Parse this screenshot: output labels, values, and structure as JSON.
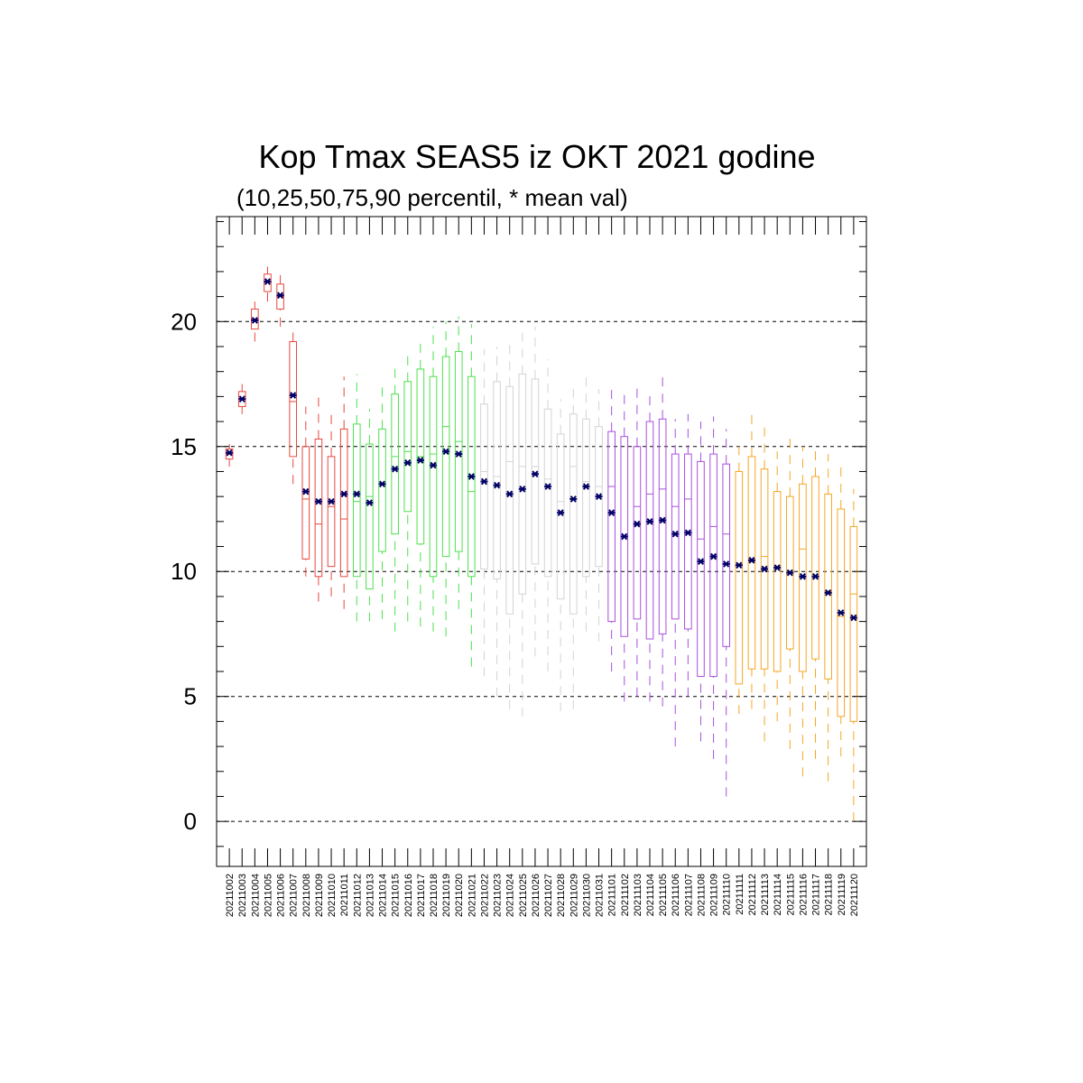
{
  "chart_data": {
    "type": "box",
    "title": "Kop Tmax SEAS5 iz OKT 2021 godine",
    "subtitle": "(10,25,50,75,90 percentil, * mean val)",
    "xlabel": "",
    "ylabel": "",
    "ylim": [
      -1.8,
      24.2
    ],
    "yticks": [
      0,
      5,
      10,
      15,
      20
    ],
    "ytick_labels": [
      "0",
      "5",
      "10",
      "15",
      "20"
    ],
    "grid": "horizontal-dashed",
    "series_colors": {
      "red": "#e8483e",
      "green": "#4ee04e",
      "gray": "#d3d3d3",
      "purple": "#a94fe0",
      "orange": "#f5a623"
    },
    "mean_marker_color": "#000066",
    "boxes": [
      {
        "date": "20211002",
        "p10": 14.2,
        "p25": 14.5,
        "p50": 14.7,
        "p75": 14.9,
        "p90": 15.1,
        "mean": 14.75,
        "color": "red"
      },
      {
        "date": "20211003",
        "p10": 16.3,
        "p25": 16.6,
        "p50": 16.9,
        "p75": 17.2,
        "p90": 17.5,
        "mean": 16.9,
        "color": "red"
      },
      {
        "date": "20211004",
        "p10": 19.2,
        "p25": 19.7,
        "p50": 20.1,
        "p75": 20.5,
        "p90": 20.8,
        "mean": 20.05,
        "color": "red"
      },
      {
        "date": "20211005",
        "p10": 20.8,
        "p25": 21.2,
        "p50": 21.6,
        "p75": 21.9,
        "p90": 22.2,
        "mean": 21.6,
        "color": "red"
      },
      {
        "date": "20211006",
        "p10": 19.8,
        "p25": 20.5,
        "p50": 21.0,
        "p75": 21.5,
        "p90": 21.9,
        "mean": 21.05,
        "color": "red"
      },
      {
        "date": "20211007",
        "p10": 13.5,
        "p25": 14.6,
        "p50": 16.8,
        "p75": 19.2,
        "p90": 19.8,
        "mean": 17.05,
        "color": "red"
      },
      {
        "date": "20211008",
        "p10": 9.8,
        "p25": 10.5,
        "p50": 12.9,
        "p75": 15.0,
        "p90": 16.6,
        "mean": 13.2,
        "color": "red"
      },
      {
        "date": "20211009",
        "p10": 8.8,
        "p25": 9.8,
        "p50": 11.9,
        "p75": 15.3,
        "p90": 17.2,
        "mean": 12.8,
        "color": "red"
      },
      {
        "date": "20211010",
        "p10": 9.0,
        "p25": 10.2,
        "p50": 12.6,
        "p75": 14.6,
        "p90": 16.3,
        "mean": 12.8,
        "color": "red"
      },
      {
        "date": "20211011",
        "p10": 8.5,
        "p25": 9.8,
        "p50": 12.1,
        "p75": 15.7,
        "p90": 17.8,
        "mean": 13.1,
        "color": "red"
      },
      {
        "date": "20211012",
        "p10": 8.0,
        "p25": 9.8,
        "p50": 12.8,
        "p75": 15.9,
        "p90": 17.9,
        "mean": 13.1,
        "color": "green"
      },
      {
        "date": "20211013",
        "p10": 8.0,
        "p25": 9.3,
        "p50": 13.0,
        "p75": 15.1,
        "p90": 16.5,
        "mean": 12.75,
        "color": "green"
      },
      {
        "date": "20211014",
        "p10": 8.1,
        "p25": 10.8,
        "p50": 13.5,
        "p75": 15.7,
        "p90": 17.5,
        "mean": 13.5,
        "color": "green"
      },
      {
        "date": "20211015",
        "p10": 7.6,
        "p25": 11.5,
        "p50": 14.6,
        "p75": 17.1,
        "p90": 18.4,
        "mean": 14.1,
        "color": "green"
      },
      {
        "date": "20211016",
        "p10": 8.0,
        "p25": 12.4,
        "p50": 14.8,
        "p75": 17.6,
        "p90": 18.8,
        "mean": 14.35,
        "color": "green"
      },
      {
        "date": "20211017",
        "p10": 7.8,
        "p25": 11.1,
        "p50": 14.6,
        "p75": 18.1,
        "p90": 19.3,
        "mean": 14.45,
        "color": "green"
      },
      {
        "date": "20211018",
        "p10": 7.6,
        "p25": 9.8,
        "p50": 14.7,
        "p75": 17.8,
        "p90": 19.8,
        "mean": 14.25,
        "color": "green"
      },
      {
        "date": "20211019",
        "p10": 7.4,
        "p25": 10.6,
        "p50": 15.8,
        "p75": 18.6,
        "p90": 20.0,
        "mean": 14.8,
        "color": "green"
      },
      {
        "date": "20211020",
        "p10": 8.5,
        "p25": 10.8,
        "p50": 15.2,
        "p75": 18.8,
        "p90": 20.2,
        "mean": 14.7,
        "color": "green"
      },
      {
        "date": "20211021",
        "p10": 6.2,
        "p25": 9.8,
        "p50": 13.2,
        "p75": 17.8,
        "p90": 19.9,
        "mean": 13.8,
        "color": "green"
      },
      {
        "date": "20211022",
        "p10": 5.8,
        "p25": 10.1,
        "p50": 14.0,
        "p75": 16.7,
        "p90": 18.9,
        "mean": 13.6,
        "color": "gray"
      },
      {
        "date": "20211023",
        "p10": 5.0,
        "p25": 9.7,
        "p50": 13.8,
        "p75": 17.6,
        "p90": 19.0,
        "mean": 13.45,
        "color": "gray"
      },
      {
        "date": "20211024",
        "p10": 4.5,
        "p25": 8.3,
        "p50": 14.4,
        "p75": 17.4,
        "p90": 19.2,
        "mean": 13.1,
        "color": "gray"
      },
      {
        "date": "20211025",
        "p10": 4.2,
        "p25": 9.1,
        "p50": 14.2,
        "p75": 17.9,
        "p90": 19.6,
        "mean": 13.3,
        "color": "gray"
      },
      {
        "date": "20211026",
        "p10": 6.6,
        "p25": 10.3,
        "p50": 14.2,
        "p75": 17.7,
        "p90": 19.8,
        "mean": 13.9,
        "color": "gray"
      },
      {
        "date": "20211027",
        "p10": 6.0,
        "p25": 9.8,
        "p50": 13.7,
        "p75": 16.5,
        "p90": 18.5,
        "mean": 13.4,
        "color": "gray"
      },
      {
        "date": "20211028",
        "p10": 4.4,
        "p25": 8.9,
        "p50": 12.8,
        "p75": 15.5,
        "p90": 16.9,
        "mean": 12.35,
        "color": "gray"
      },
      {
        "date": "20211029",
        "p10": 4.5,
        "p25": 8.3,
        "p50": 14.2,
        "p75": 16.3,
        "p90": 17.5,
        "mean": 12.9,
        "color": "gray"
      },
      {
        "date": "20211030",
        "p10": 7.6,
        "p25": 9.8,
        "p50": 13.6,
        "p75": 16.1,
        "p90": 17.9,
        "mean": 13.4,
        "color": "gray"
      },
      {
        "date": "20211031",
        "p10": 7.2,
        "p25": 10.2,
        "p50": 13.4,
        "p75": 15.8,
        "p90": 17.3,
        "mean": 13.0,
        "color": "gray"
      },
      {
        "date": "20211101",
        "p10": 6.0,
        "p25": 8.0,
        "p50": 13.4,
        "p75": 15.6,
        "p90": 17.4,
        "mean": 12.35,
        "color": "purple"
      },
      {
        "date": "20211102",
        "p10": 4.8,
        "p25": 7.4,
        "p50": 11.4,
        "p75": 15.4,
        "p90": 17.1,
        "mean": 11.4,
        "color": "purple"
      },
      {
        "date": "20211103",
        "p10": 5.0,
        "p25": 8.1,
        "p50": 12.6,
        "p75": 15.0,
        "p90": 17.6,
        "mean": 11.9,
        "color": "purple"
      },
      {
        "date": "20211104",
        "p10": 4.8,
        "p25": 7.3,
        "p50": 13.1,
        "p75": 16.0,
        "p90": 17.2,
        "mean": 12.0,
        "color": "purple"
      },
      {
        "date": "20211105",
        "p10": 4.6,
        "p25": 7.5,
        "p50": 13.3,
        "p75": 16.1,
        "p90": 18.0,
        "mean": 12.05,
        "color": "purple"
      },
      {
        "date": "20211106",
        "p10": 3.0,
        "p25": 8.1,
        "p50": 12.6,
        "p75": 14.7,
        "p90": 16.1,
        "mean": 11.5,
        "color": "purple"
      },
      {
        "date": "20211107",
        "p10": 5.0,
        "p25": 7.7,
        "p50": 12.9,
        "p75": 14.7,
        "p90": 16.3,
        "mean": 11.55,
        "color": "purple"
      },
      {
        "date": "20211108",
        "p10": 3.2,
        "p25": 5.8,
        "p50": 11.3,
        "p75": 14.4,
        "p90": 16.0,
        "mean": 10.4,
        "color": "purple"
      },
      {
        "date": "20211109",
        "p10": 2.5,
        "p25": 5.8,
        "p50": 11.8,
        "p75": 14.7,
        "p90": 16.2,
        "mean": 10.6,
        "color": "purple"
      },
      {
        "date": "20211110",
        "p10": 1.0,
        "p25": 7.0,
        "p50": 11.5,
        "p75": 14.3,
        "p90": 15.7,
        "mean": 10.3,
        "color": "purple"
      },
      {
        "date": "20211111",
        "p10": 4.3,
        "p25": 5.5,
        "p50": 10.3,
        "p75": 14.0,
        "p90": 15.2,
        "mean": 10.25,
        "color": "orange"
      },
      {
        "date": "20211112",
        "p10": 4.5,
        "p25": 6.1,
        "p50": 10.4,
        "p75": 14.6,
        "p90": 16.4,
        "mean": 10.45,
        "color": "orange"
      },
      {
        "date": "20211113",
        "p10": 3.2,
        "p25": 6.1,
        "p50": 10.6,
        "p75": 14.1,
        "p90": 16.0,
        "mean": 10.1,
        "color": "orange"
      },
      {
        "date": "20211114",
        "p10": 4.0,
        "p25": 6.0,
        "p50": 10.2,
        "p75": 13.2,
        "p90": 14.8,
        "mean": 10.15,
        "color": "orange"
      },
      {
        "date": "20211115",
        "p10": 2.9,
        "p25": 6.9,
        "p50": 10.0,
        "p75": 13.0,
        "p90": 15.4,
        "mean": 9.95,
        "color": "orange"
      },
      {
        "date": "20211116",
        "p10": 1.8,
        "p25": 6.0,
        "p50": 10.9,
        "p75": 13.5,
        "p90": 15.0,
        "mean": 9.8,
        "color": "orange"
      },
      {
        "date": "20211117",
        "p10": 2.5,
        "p25": 6.5,
        "p50": 9.8,
        "p75": 13.8,
        "p90": 15.0,
        "mean": 9.8,
        "color": "orange"
      },
      {
        "date": "20211118",
        "p10": 1.6,
        "p25": 5.7,
        "p50": 9.2,
        "p75": 13.1,
        "p90": 14.7,
        "mean": 9.15,
        "color": "orange"
      },
      {
        "date": "20211119",
        "p10": 2.6,
        "p25": 4.2,
        "p50": 8.2,
        "p75": 12.5,
        "p90": 14.3,
        "mean": 8.35,
        "color": "orange"
      },
      {
        "date": "20211120",
        "p10": 0.0,
        "p25": 4.0,
        "p50": 9.1,
        "p75": 11.8,
        "p90": 13.3,
        "mean": 8.15,
        "color": "orange"
      }
    ]
  }
}
